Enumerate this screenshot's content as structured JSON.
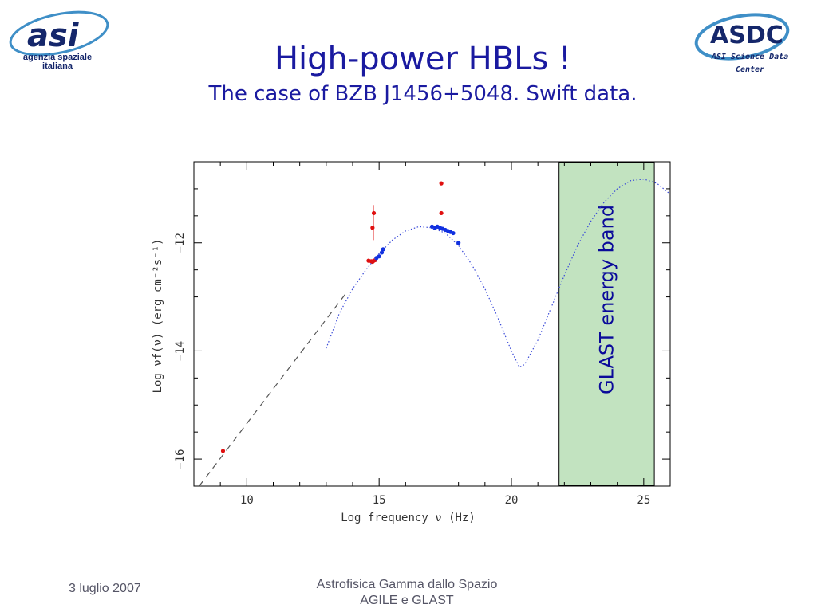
{
  "header": {
    "title": "High-power HBLs !",
    "subtitle": "The case of BZB J1456+5048. Swift data."
  },
  "logos": {
    "asi": {
      "mark": "asi",
      "line1": "agenzia spaziale",
      "line2": "italiana"
    },
    "asdc": {
      "mark": "ASDC",
      "line1": "ASI Science Data",
      "line2": "Center"
    }
  },
  "footer": {
    "date": "3 luglio 2007",
    "line1": "Astrofisica Gamma dallo Spazio",
    "line2": "AGILE e GLAST"
  },
  "colors": {
    "title": "#1a1aa0",
    "data_red": "#e01010",
    "data_blue": "#1030e0",
    "band_fill": "#c2e3c0",
    "model_curve": "#3a4ad8"
  },
  "chart_data": {
    "type": "scatter",
    "xlabel": "Log frequency ν (Hz)",
    "ylabel": "Log νf(ν) (erg cm⁻²s⁻¹)",
    "xlim": [
      8,
      26
    ],
    "ylim": [
      -16.5,
      -10.5
    ],
    "x_ticks": [
      10,
      15,
      20,
      25
    ],
    "y_ticks": [
      -12,
      -14,
      -16
    ],
    "annotation": "GLAST energy band",
    "band": {
      "x": [
        21.8,
        25.4
      ]
    },
    "series": [
      {
        "marker": "dot",
        "color": "red",
        "x": [
          9.1,
          14.6,
          14.7,
          14.75,
          14.8,
          14.85,
          14.75,
          14.8,
          17.35,
          17.35
        ],
        "y": [
          -15.85,
          -12.33,
          -12.34,
          -12.35,
          -12.33,
          -12.32,
          -11.72,
          -11.45,
          -10.9,
          -11.45
        ]
      },
      {
        "marker": "dot",
        "color": "blue",
        "x": [
          14.9,
          15.0,
          15.1,
          15.15,
          17.0,
          17.1,
          17.2,
          17.3,
          17.4,
          17.5,
          17.6,
          17.7,
          17.8,
          18.0
        ],
        "y": [
          -12.28,
          -12.25,
          -12.18,
          -12.12,
          -11.7,
          -11.72,
          -11.7,
          -11.72,
          -11.74,
          -11.76,
          -11.78,
          -11.8,
          -11.82,
          -12.0
        ]
      },
      {
        "line": "dotted",
        "color": "blue",
        "x": [
          13.0,
          13.5,
          14.0,
          14.5,
          15.0,
          15.5,
          16.0,
          16.5,
          17.0,
          17.5,
          18.0,
          18.5,
          19.0,
          19.5,
          20.0,
          20.3,
          20.5,
          21.0,
          21.5,
          22.0,
          22.5,
          23.0,
          23.5,
          24.0,
          24.5,
          25.0,
          25.5,
          26.0
        ],
        "y": [
          -13.95,
          -13.3,
          -12.85,
          -12.5,
          -12.2,
          -11.95,
          -11.78,
          -11.7,
          -11.72,
          -11.82,
          -12.05,
          -12.4,
          -12.85,
          -13.4,
          -14.0,
          -14.3,
          -14.25,
          -13.8,
          -13.2,
          -12.6,
          -12.05,
          -11.6,
          -11.25,
          -11.0,
          -10.85,
          -10.82,
          -10.9,
          -11.1
        ]
      },
      {
        "line": "dashed",
        "color": "gray",
        "x": [
          8.2,
          13.8
        ],
        "y": [
          -16.5,
          -12.9
        ]
      }
    ]
  }
}
